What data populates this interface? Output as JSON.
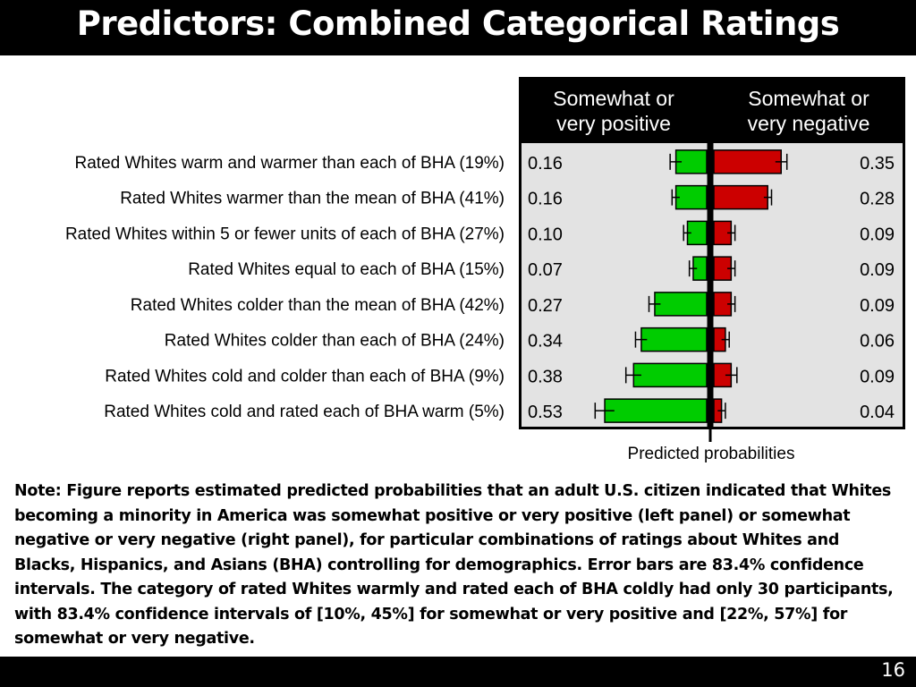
{
  "slide": {
    "title": "Predictors: Combined Categorical Ratings",
    "note": "Note: Figure reports estimated predicted probabilities that an adult U.S. citizen indicated that Whites becoming a minority in America was somewhat positive or very positive (left panel) or somewhat negative or very negative (right panel), for particular combinations of ratings about Whites and Blacks, Hispanics, and Asians (BHA) controlling for demographics. Error bars are 83.4% confidence intervals. The category of rated Whites warmly and rated each of BHA coldly had only 30 participants, with 83.4% confidence intervals of [10%, 45%] for somewhat or very positive and [22%, 57%] for somewhat or very negative.",
    "page_number": "16"
  },
  "chart_data": {
    "type": "bar",
    "orientation": "horizontal",
    "xlabel": "Predicted probabilities",
    "xlim": [
      0,
      0.6
    ],
    "categories": [
      "Rated Whites warm and warmer than each of BHA (19%)",
      "Rated Whites warmer than the mean of BHA (41%)",
      "Rated Whites within 5 or fewer units of each of BHA (27%)",
      "Rated Whites equal to each of BHA (15%)",
      "Rated Whites colder than the mean of BHA (42%)",
      "Rated Whites colder than each of BHA (24%)",
      "Rated Whites cold and colder than each of BHA (9%)",
      "Rated Whites cold and rated each of BHA warm (5%)"
    ],
    "series": [
      {
        "name": "Somewhat or very positive",
        "color": "#00cc00",
        "direction": "left",
        "labels": [
          "0.16",
          "0.16",
          "0.10",
          "0.07",
          "0.27",
          "0.34",
          "0.38",
          "0.53"
        ],
        "values": [
          0.16,
          0.16,
          0.1,
          0.07,
          0.27,
          0.34,
          0.38,
          0.53
        ],
        "ci_low": [
          0.13,
          0.14,
          0.08,
          0.05,
          0.24,
          0.31,
          0.34,
          0.48
        ],
        "ci_high": [
          0.19,
          0.18,
          0.12,
          0.09,
          0.3,
          0.37,
          0.42,
          0.58
        ]
      },
      {
        "name": "Somewhat or very negative",
        "color": "#cc0000",
        "direction": "right",
        "labels": [
          "0.35",
          "0.28",
          "0.09",
          "0.09",
          "0.09",
          "0.06",
          "0.09",
          "0.04"
        ],
        "values": [
          0.35,
          0.28,
          0.09,
          0.09,
          0.09,
          0.06,
          0.09,
          0.04
        ],
        "ci_low": [
          0.32,
          0.26,
          0.07,
          0.07,
          0.07,
          0.04,
          0.06,
          0.02
        ],
        "ci_high": [
          0.38,
          0.3,
          0.11,
          0.11,
          0.11,
          0.08,
          0.12,
          0.06
        ]
      }
    ],
    "colors": {
      "panel_header_bg": "#000000",
      "panel_header_text": "#ffffff",
      "panel_bg": "#e3e3e3",
      "frame": "#000000"
    }
  }
}
